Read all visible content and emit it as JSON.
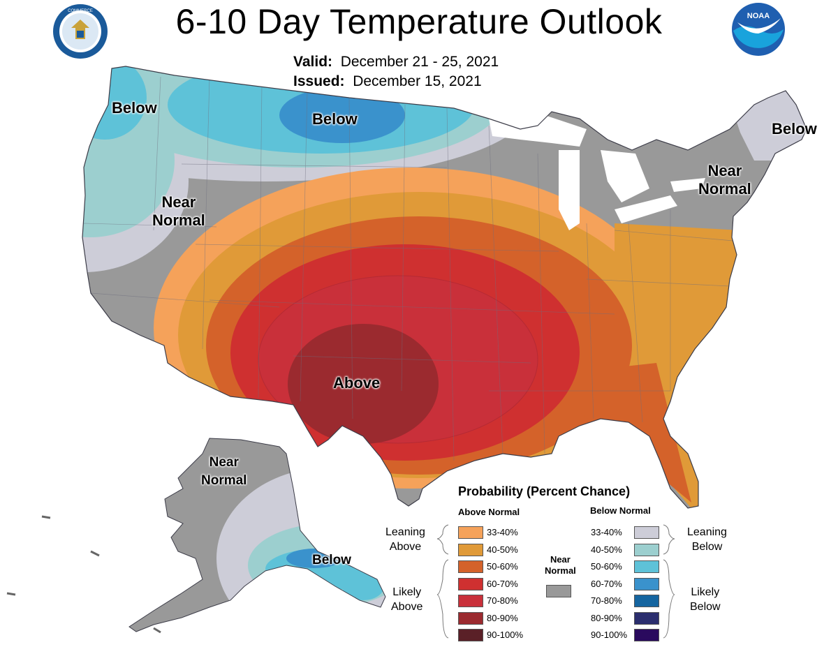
{
  "header": {
    "title": "6-10 Day Temperature Outlook",
    "valid_label": "Valid:",
    "valid_dates": "December 21 - 25, 2021",
    "issued_label": "Issued:",
    "issued_date": "December 15, 2021"
  },
  "logos": {
    "left": "department-of-commerce-seal",
    "left_text": "DEPARTMENT OF COMMERCE · UNITED STATES OF AMERICA",
    "right": "noaa-logo",
    "right_text": "NOAA"
  },
  "map_labels": {
    "below_nw": "Below",
    "below_north": "Below",
    "below_ne": "Below",
    "near_normal_west_1": "Near",
    "near_normal_west_2": "Normal",
    "near_normal_ne_1": "Near",
    "near_normal_ne_2": "Normal",
    "above_south": "Above",
    "near_normal_ak_1": "Near",
    "near_normal_ak_2": "Normal",
    "below_ak": "Below"
  },
  "legend": {
    "title": "Probability (Percent Chance)",
    "above_head": "Above Normal",
    "below_head": "Below Normal",
    "near_normal_1": "Near",
    "near_normal_2": "Normal",
    "near_normal_color": "#999999",
    "leaning_above_1": "Leaning",
    "leaning_above_2": "Above",
    "likely_above_1": "Likely",
    "likely_above_2": "Above",
    "leaning_below_1": "Leaning",
    "leaning_below_2": "Below",
    "likely_below_1": "Likely",
    "likely_below_2": "Below",
    "above": [
      {
        "range": "33-40%",
        "color": "#f5a25a"
      },
      {
        "range": "40-50%",
        "color": "#e09a38"
      },
      {
        "range": "50-60%",
        "color": "#d4622a"
      },
      {
        "range": "60-70%",
        "color": "#cf3030"
      },
      {
        "range": "70-80%",
        "color": "#c9303a"
      },
      {
        "range": "80-90%",
        "color": "#9b2a2f"
      },
      {
        "range": "90-100%",
        "color": "#5a2027"
      }
    ],
    "below": [
      {
        "range": "33-40%",
        "color": "#cdcdd8"
      },
      {
        "range": "40-50%",
        "color": "#9ccfcf"
      },
      {
        "range": "50-60%",
        "color": "#5ec2d8"
      },
      {
        "range": "60-70%",
        "color": "#3a92cc"
      },
      {
        "range": "70-80%",
        "color": "#1565a0"
      },
      {
        "range": "80-90%",
        "color": "#2b2e6e"
      },
      {
        "range": "90-100%",
        "color": "#2a0a5e"
      }
    ]
  }
}
